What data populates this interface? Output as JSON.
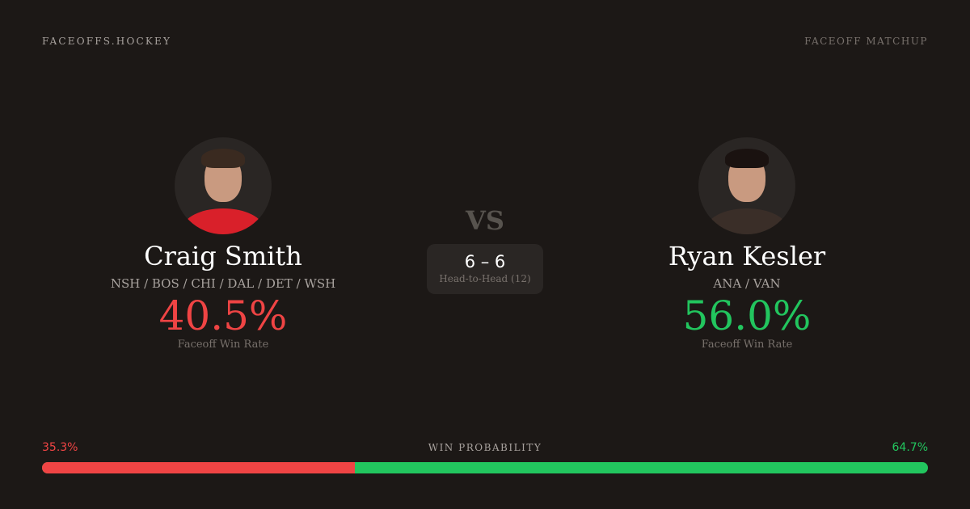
{
  "header": {
    "brand": "FACEOFFS.HOCKEY",
    "tag": "FACEOFF MATCHUP"
  },
  "colors": {
    "left": "#ef4444",
    "right": "#22c55e",
    "background": "#1c1816"
  },
  "player1": {
    "name": "Craig Smith",
    "teams": "NSH / BOS / CHI / DAL / DET / WSH",
    "rate": "40.5%",
    "rate_label": "Faceoff Win Rate"
  },
  "player2": {
    "name": "Ryan Kesler",
    "teams": "ANA / VAN",
    "rate": "56.0%",
    "rate_label": "Faceoff Win Rate"
  },
  "vs": "VS",
  "h2h": {
    "score": "6 – 6",
    "label": "Head-to-Head (12)"
  },
  "probability": {
    "label": "WIN PROBABILITY",
    "left": "35.3%",
    "right": "64.7%",
    "left_value": 35.3
  }
}
